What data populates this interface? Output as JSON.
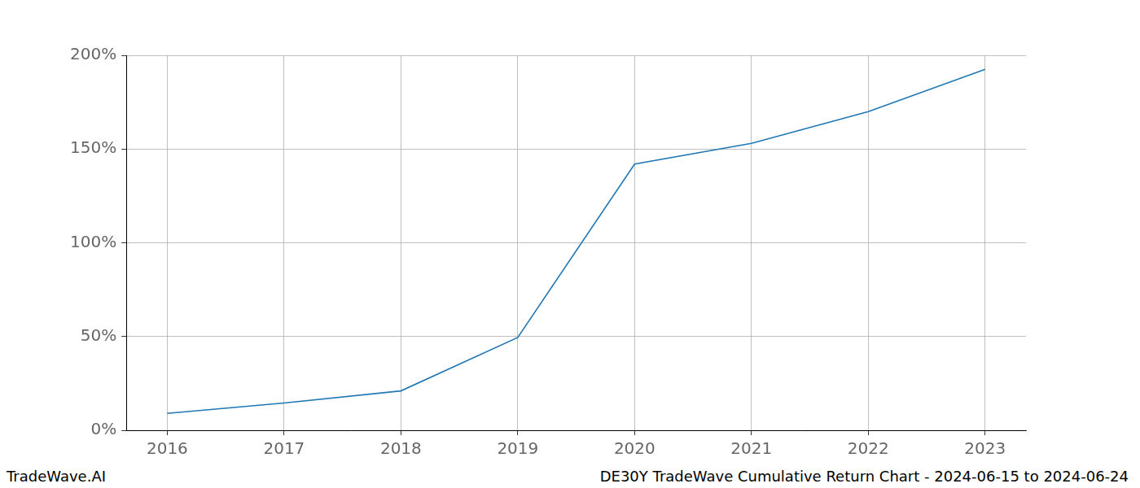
{
  "chart_data": {
    "type": "line",
    "x": [
      2016,
      2017,
      2018,
      2019,
      2020,
      2021,
      2022,
      2023
    ],
    "values": [
      9,
      14.5,
      21,
      49.5,
      142,
      153,
      170,
      192.5
    ],
    "color": "#1f77b4",
    "xlim": [
      2015.65,
      2023.35
    ],
    "xticks": [
      2016,
      2017,
      2018,
      2019,
      2020,
      2021,
      2022,
      2023
    ],
    "ylim": [
      0,
      200
    ],
    "yticks": [
      {
        "value": 0,
        "label": "0%"
      },
      {
        "value": 50,
        "label": "50%"
      },
      {
        "value": 100,
        "label": "100%"
      },
      {
        "value": 150,
        "label": "150%"
      },
      {
        "value": 200,
        "label": "200%"
      }
    ],
    "grid": true,
    "footer": {
      "left": "TradeWave.AI",
      "right": "DE30Y TradeWave Cumulative Return Chart - 2024-06-15 to 2024-06-24"
    }
  }
}
